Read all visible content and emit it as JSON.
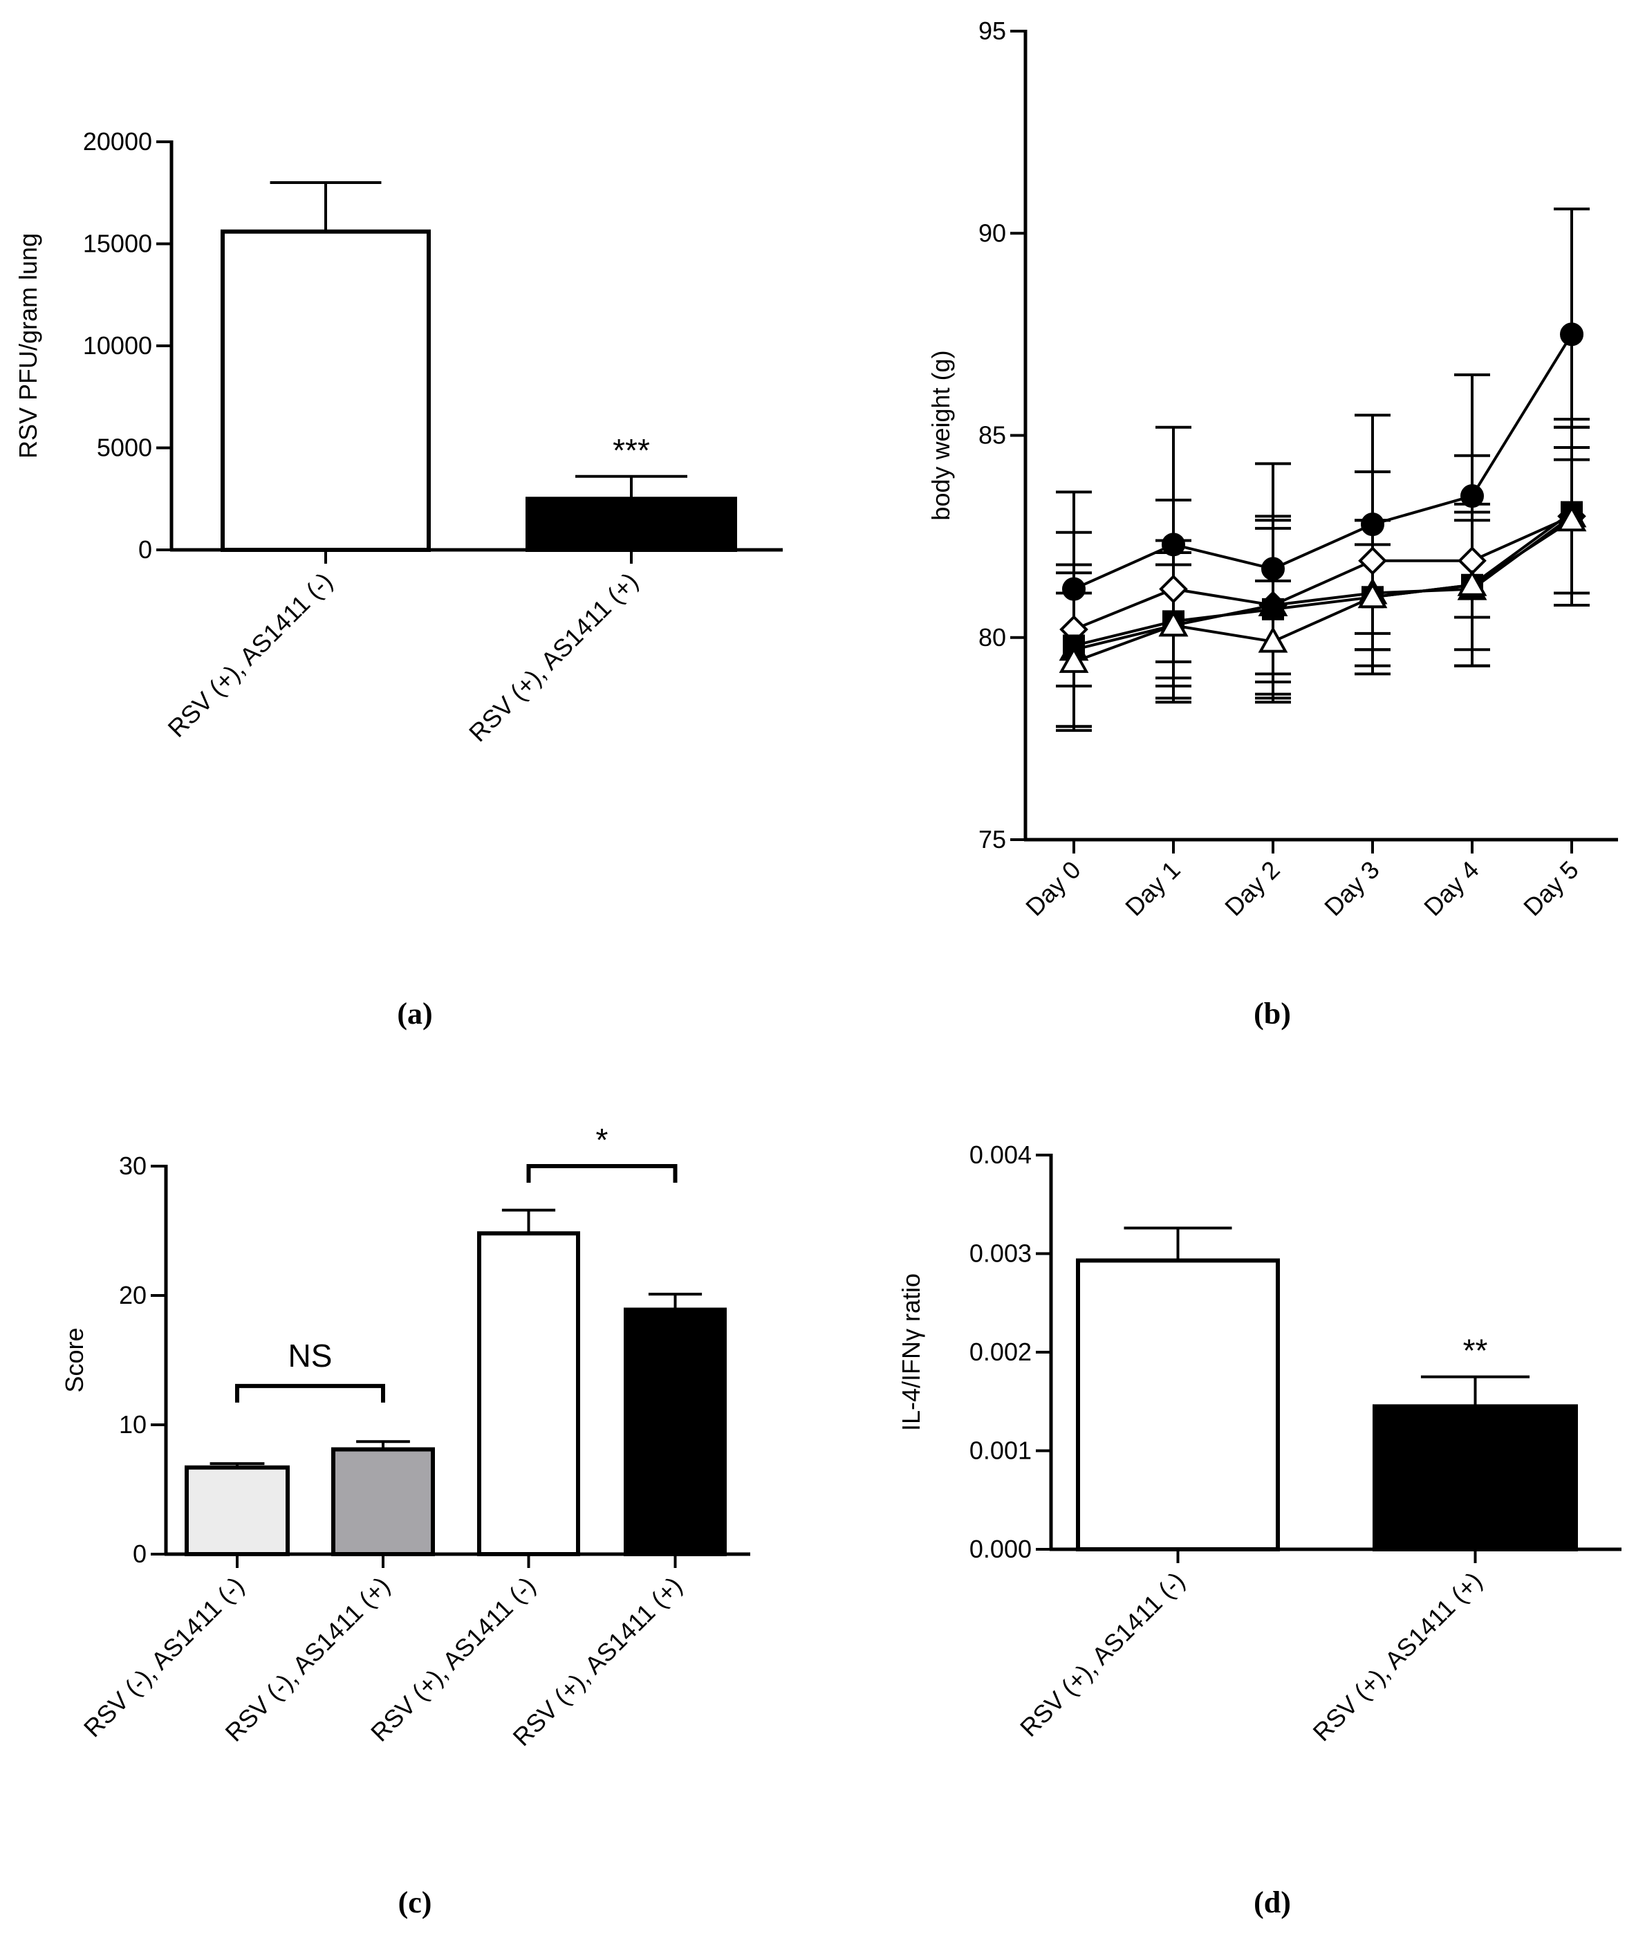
{
  "chart_data": [
    {
      "id": "a",
      "type": "bar",
      "panel_label": "(a)",
      "ylabel": "RSV PFU/gram lung",
      "ylim": [
        0,
        20000
      ],
      "yticks": [
        "0",
        "5000",
        "10000",
        "15000",
        "20000"
      ],
      "ytick_values": [
        0,
        5000,
        10000,
        15000,
        20000
      ],
      "categories": [
        "RSV (+), AS1411 (-)",
        "RSV (+), AS1411 (+)"
      ],
      "values": [
        15600,
        2500
      ],
      "errors": [
        2400,
        1100
      ],
      "colors": [
        "#ffffff",
        "#000000"
      ],
      "annotations": [
        {
          "text": "***",
          "category": 1
        }
      ]
    },
    {
      "id": "b",
      "type": "line",
      "panel_label": "(b)",
      "ylabel": "body weight (g)",
      "ylim": [
        75,
        95
      ],
      "yticks": [
        "75",
        "80",
        "85",
        "90",
        "95"
      ],
      "ytick_values": [
        75,
        80,
        85,
        90,
        95
      ],
      "categories": [
        "Day 0",
        "Day 1",
        "Day 2",
        "Day 3",
        "Day 4",
        "Day 5"
      ],
      "series": [
        {
          "name": "filled-circle",
          "marker": "circle",
          "fill": "#000000",
          "values": [
            81.2,
            82.3,
            81.7,
            82.8,
            83.5,
            87.5
          ],
          "errors": [
            2.4,
            2.9,
            2.6,
            2.7,
            3.0,
            3.1
          ]
        },
        {
          "name": "open-diamond",
          "marker": "diamond",
          "fill": "#ffffff",
          "values": [
            80.2,
            81.2,
            80.8,
            81.9,
            81.9,
            83.0
          ],
          "errors": [
            2.4,
            2.2,
            2.2,
            2.2,
            2.6,
            2.2
          ]
        },
        {
          "name": "filled-square",
          "marker": "square",
          "fill": "#000000",
          "values": [
            79.8,
            80.4,
            80.7,
            81.0,
            81.3,
            83.1
          ],
          "errors": [
            2.0,
            2.0,
            2.2,
            1.9,
            2.0,
            2.3
          ]
        },
        {
          "name": "filled-triangle",
          "marker": "triangle",
          "fill": "#000000",
          "values": [
            79.7,
            80.3,
            80.8,
            81.1,
            81.2,
            83.0
          ],
          "errors": [
            1.9,
            1.8,
            1.9,
            1.8,
            1.9,
            2.2
          ]
        },
        {
          "name": "open-triangle",
          "marker": "triangle",
          "fill": "#ffffff",
          "values": [
            79.4,
            80.3,
            79.9,
            81.0,
            81.3,
            82.9
          ],
          "errors": [
            1.7,
            1.5,
            1.5,
            1.3,
            1.6,
            1.8
          ]
        }
      ]
    },
    {
      "id": "c",
      "type": "bar",
      "panel_label": "(c)",
      "ylabel": "Score",
      "ylim": [
        0,
        30
      ],
      "yticks": [
        "0",
        "10",
        "20",
        "30"
      ],
      "ytick_values": [
        0,
        10,
        20,
        30
      ],
      "categories": [
        "RSV (-), AS1411 (-)",
        "RSV (-), AS1411 (+)",
        "RSV (+), AS1411 (-)",
        "RSV (+), AS1411 (+)"
      ],
      "values": [
        6.7,
        8.1,
        24.8,
        18.9
      ],
      "errors": [
        0.3,
        0.6,
        1.8,
        1.2
      ],
      "colors": [
        "#ececec",
        "#a6a5a9",
        "#ffffff",
        "#000000"
      ],
      "brackets": [
        {
          "text": "NS",
          "from": 0,
          "to": 1,
          "level": 13.0
        },
        {
          "text": "*",
          "from": 2,
          "to": 3,
          "level": 30.0
        }
      ]
    },
    {
      "id": "d",
      "type": "bar",
      "panel_label": "(d)",
      "ylabel": "IL-4/IFNγ  ratio",
      "ylim": [
        0,
        0.004
      ],
      "yticks": [
        "0.000",
        "0.001",
        "0.002",
        "0.003",
        "0.004"
      ],
      "ytick_values": [
        0,
        0.001,
        0.002,
        0.003,
        0.004
      ],
      "categories": [
        "RSV (+), AS1411 (-)",
        "RSV (+), AS1411 (+)"
      ],
      "values": [
        0.00293,
        0.00145
      ],
      "errors": [
        0.00033,
        0.0003
      ],
      "colors": [
        "#ffffff",
        "#000000"
      ],
      "annotations": [
        {
          "text": "**",
          "category": 1
        }
      ]
    }
  ]
}
